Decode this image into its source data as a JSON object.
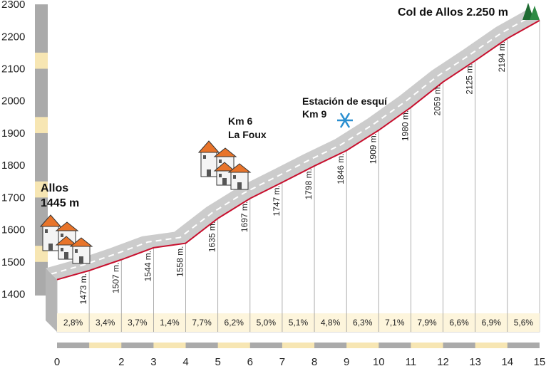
{
  "chart_data": {
    "type": "area",
    "title": "",
    "xlabel": "",
    "ylabel": "",
    "xlim": [
      0,
      15
    ],
    "ylim": [
      1400,
      2300
    ],
    "y_ticks": [
      "1400",
      "1500",
      "1600",
      "1700",
      "1800",
      "1900",
      "2000",
      "2100",
      "2200",
      "2300"
    ],
    "x_ticks": [
      "0",
      "2",
      "3",
      "4",
      "5",
      "6",
      "7",
      "8",
      "9",
      "10",
      "11",
      "12",
      "13",
      "14",
      "15"
    ],
    "points": [
      {
        "x": 0,
        "y": 1445
      },
      {
        "x": 1,
        "y": 1473,
        "label": "1473 m."
      },
      {
        "x": 2,
        "y": 1507,
        "label": "1507 m."
      },
      {
        "x": 3,
        "y": 1544,
        "label": "1544 m."
      },
      {
        "x": 4,
        "y": 1558,
        "label": "1558 m."
      },
      {
        "x": 5,
        "y": 1635,
        "label": "1635 m."
      },
      {
        "x": 6,
        "y": 1697,
        "label": "1697 m."
      },
      {
        "x": 7,
        "y": 1747,
        "label": "1747 m."
      },
      {
        "x": 8,
        "y": 1798,
        "label": "1798 m."
      },
      {
        "x": 9,
        "y": 1846,
        "label": "1846 m."
      },
      {
        "x": 10,
        "y": 1909,
        "label": "1909 m."
      },
      {
        "x": 11,
        "y": 1980,
        "label": "1980 m."
      },
      {
        "x": 12,
        "y": 2059,
        "label": "2059 m."
      },
      {
        "x": 13,
        "y": 2125,
        "label": "2125 m."
      },
      {
        "x": 14,
        "y": 2194,
        "label": "2194 m."
      },
      {
        "x": 15,
        "y": 2250
      }
    ],
    "grades": [
      "2,8%",
      "3,4%",
      "3,7%",
      "1,4%",
      "7,7%",
      "6,2%",
      "5,0%",
      "5,1%",
      "4,8%",
      "6,3%",
      "7,1%",
      "7,9%",
      "6,6%",
      "6,9%",
      "5,6%"
    ],
    "annotations": {
      "start_name": "Allos",
      "start_elev": "1445 m",
      "km6_line1": "Km 6",
      "km6_line2": "La Foux",
      "ski_line1": "Estación de esquí",
      "ski_line2": "Km 9",
      "summit": "Col de Allos  2.250 m"
    },
    "colors": {
      "profile_line": "#c8102e",
      "road": "#cccccc",
      "area_fill": "#ffffff",
      "ruler_light": "#f7e6b3",
      "ruler_grey": "#aaaaaa",
      "house_roof": "#e8742a",
      "ski_icon": "#2a8fd0",
      "summit_icon": "#1f6b32"
    }
  }
}
